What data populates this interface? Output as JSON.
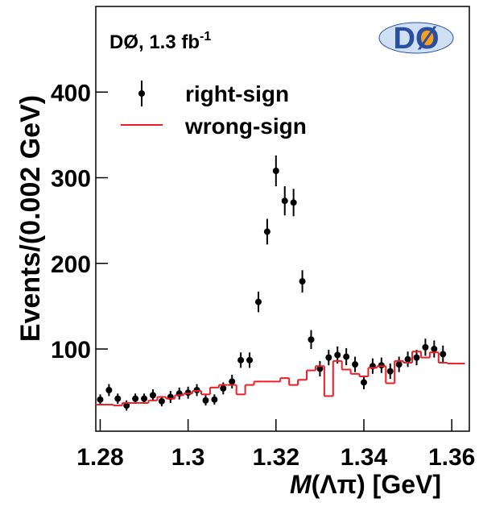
{
  "chart_data": {
    "type": "histogram-points",
    "annotation": "DØ, 1.3 fb",
    "annotation_sup": "-1",
    "logo_text": "DØ",
    "ylabel": "Events/(0.002 GeV)",
    "xlabel_var": "M",
    "xlabel": "(Λπ) [GeV]",
    "xlim": [
      1.279,
      1.364
    ],
    "ylim": [
      4,
      500
    ],
    "xticks": [
      1.28,
      1.3,
      1.32,
      1.34,
      1.36
    ],
    "yticks": [
      100,
      200,
      300,
      400
    ],
    "series": [
      {
        "name": "right-sign",
        "color": "#000000",
        "style": "points",
        "x": [
          1.28,
          1.282,
          1.284,
          1.286,
          1.288,
          1.29,
          1.292,
          1.294,
          1.296,
          1.298,
          1.3,
          1.302,
          1.304,
          1.306,
          1.308,
          1.31,
          1.312,
          1.314,
          1.316,
          1.318,
          1.32,
          1.322,
          1.324,
          1.326,
          1.328,
          1.33,
          1.332,
          1.334,
          1.336,
          1.338,
          1.34,
          1.342,
          1.344,
          1.346,
          1.348,
          1.35,
          1.352,
          1.354,
          1.356,
          1.358
        ],
        "values": [
          41,
          52,
          42,
          34,
          42,
          42,
          46,
          39,
          44,
          48,
          49,
          52,
          40,
          41,
          54,
          62,
          87,
          87,
          155,
          237,
          308,
          273,
          271,
          179,
          111,
          77,
          90,
          93,
          91,
          82,
          61,
          80,
          81,
          74,
          82,
          88,
          90,
          102,
          100,
          94
        ],
        "errors": [
          6,
          7,
          6,
          6,
          6,
          6,
          7,
          6,
          7,
          7,
          7,
          7,
          6,
          6,
          7,
          8,
          9,
          9,
          12,
          15,
          18,
          17,
          16,
          13,
          11,
          9,
          9,
          10,
          10,
          9,
          8,
          9,
          9,
          9,
          9,
          9,
          9,
          10,
          10,
          10
        ]
      },
      {
        "name": "wrong-sign",
        "color": "#ee1c24",
        "style": "step",
        "x": [
          1.28,
          1.282,
          1.284,
          1.286,
          1.288,
          1.29,
          1.292,
          1.294,
          1.296,
          1.298,
          1.3,
          1.302,
          1.304,
          1.306,
          1.308,
          1.31,
          1.312,
          1.314,
          1.316,
          1.318,
          1.32,
          1.322,
          1.324,
          1.326,
          1.328,
          1.33,
          1.332,
          1.334,
          1.336,
          1.338,
          1.34,
          1.342,
          1.344,
          1.346,
          1.348,
          1.35,
          1.352,
          1.354,
          1.356,
          1.358,
          1.36,
          1.362
        ],
        "values": [
          35,
          35,
          34,
          37,
          37,
          37,
          40,
          44,
          42,
          46,
          48,
          51,
          47,
          55,
          58,
          58,
          47,
          58,
          62,
          62,
          62,
          66,
          58,
          64,
          75,
          80,
          45,
          86,
          76,
          71,
          68,
          78,
          80,
          60,
          86,
          84,
          97,
          90,
          96,
          84,
          83,
          83
        ]
      }
    ]
  }
}
